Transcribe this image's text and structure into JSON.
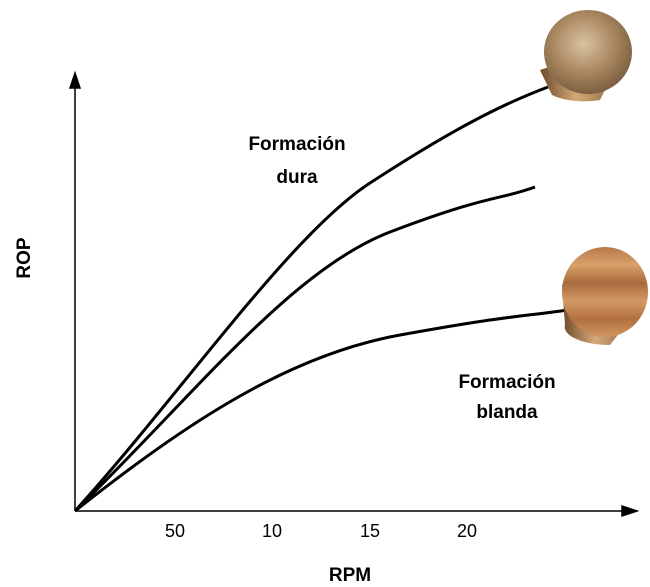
{
  "axes": {
    "x_label": "RPM",
    "y_label": "ROP",
    "x_tick_labels": [
      "50",
      "10",
      "15",
      "20"
    ]
  },
  "annotations": [
    {
      "lines": [
        "Formación",
        "dura"
      ]
    },
    {
      "lines": [
        "Formación",
        "blanda"
      ]
    }
  ]
}
